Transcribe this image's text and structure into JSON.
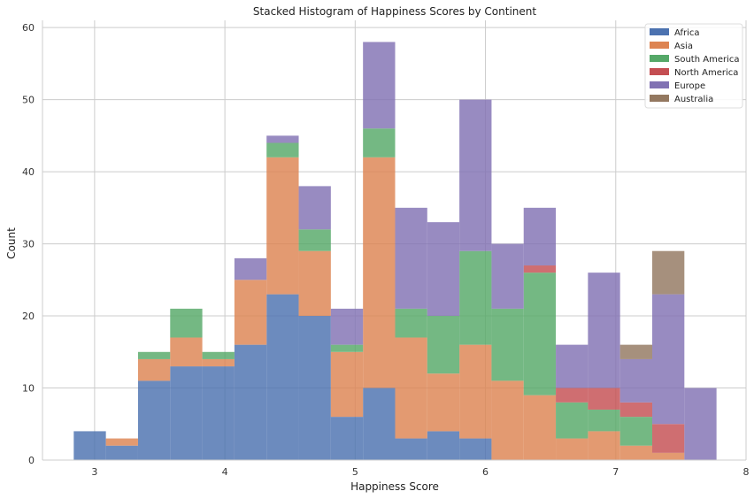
{
  "chart_data": {
    "type": "bar",
    "stacked": true,
    "histogram": true,
    "title": "Stacked Histogram of Happiness Scores by Continent",
    "xlabel": "Happiness Score",
    "ylabel": "Count",
    "xlim": [
      2.6,
      8.0
    ],
    "ylim": [
      0,
      61
    ],
    "xticks": [
      "3",
      "4",
      "5",
      "6",
      "7",
      "8"
    ],
    "yticks": [
      "0",
      "10",
      "20",
      "30",
      "40",
      "50",
      "60"
    ],
    "grid": true,
    "legend_position": "top-right",
    "bin_edges": [
      2.84,
      3.0867,
      3.3333,
      3.58,
      3.8267,
      4.0733,
      4.32,
      4.5667,
      4.8133,
      5.06,
      5.3067,
      5.5533,
      5.8,
      6.0467,
      6.2933,
      6.54,
      6.7867,
      7.0333,
      7.28,
      7.5267,
      7.7733
    ],
    "series": [
      {
        "name": "Africa",
        "color": "#4c72b0",
        "values": [
          4,
          2,
          11,
          13,
          13,
          16,
          23,
          20,
          6,
          10,
          3,
          4,
          3,
          0,
          0,
          0,
          0,
          0,
          0,
          0
        ]
      },
      {
        "name": "Asia",
        "color": "#dd8452",
        "values": [
          0,
          1,
          3,
          4,
          1,
          9,
          19,
          9,
          9,
          32,
          14,
          8,
          13,
          11,
          9,
          3,
          4,
          2,
          1,
          0
        ]
      },
      {
        "name": "South America",
        "color": "#55a868",
        "values": [
          0,
          0,
          1,
          4,
          1,
          0,
          2,
          3,
          1,
          4,
          4,
          8,
          13,
          10,
          17,
          5,
          3,
          4,
          0,
          0
        ]
      },
      {
        "name": "North America",
        "color": "#c44e52",
        "values": [
          0,
          0,
          0,
          0,
          0,
          0,
          0,
          0,
          0,
          0,
          0,
          0,
          0,
          0,
          1,
          2,
          3,
          2,
          4,
          0
        ]
      },
      {
        "name": "Europe",
        "color": "#8172b3",
        "values": [
          0,
          0,
          0,
          0,
          0,
          3,
          1,
          6,
          5,
          12,
          14,
          13,
          21,
          9,
          8,
          6,
          16,
          6,
          18,
          10
        ]
      },
      {
        "name": "Australia",
        "color": "#937860",
        "values": [
          0,
          0,
          0,
          0,
          0,
          0,
          0,
          0,
          0,
          0,
          0,
          0,
          0,
          0,
          0,
          0,
          0,
          2,
          6,
          0
        ]
      }
    ]
  }
}
